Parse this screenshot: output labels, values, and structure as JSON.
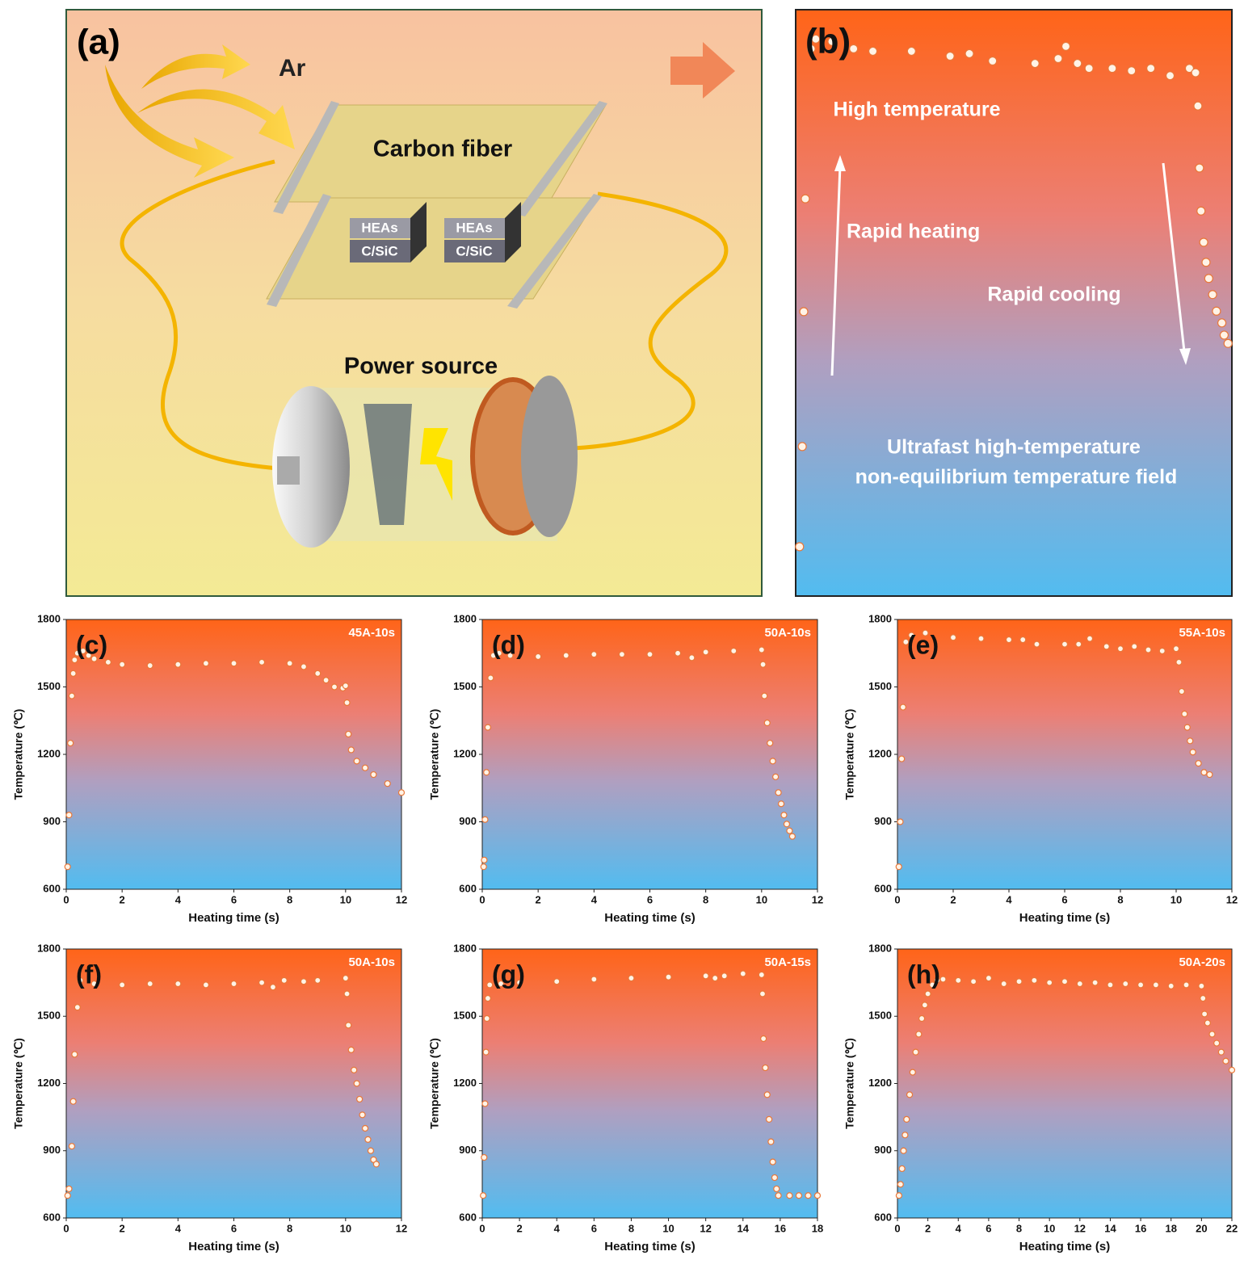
{
  "panel_a": {
    "label": "(a)",
    "gas": "Ar",
    "substrate": "Carbon fiber",
    "samples": [
      {
        "top": "HEAs",
        "bottom": "C/SiC"
      },
      {
        "top": "HEAs",
        "bottom": "C/SiC"
      }
    ],
    "power": "Power source"
  },
  "chart_data": [
    {
      "type": "scatter",
      "label": "(b)",
      "annotations": [
        "High temperature",
        "Rapid heating",
        "Rapid cooling",
        "Ultrafast high-temperature",
        "non-equilibrium temperature field"
      ],
      "color": "#e8783a",
      "xlim": [
        0,
        11.3
      ],
      "ylim": [
        600,
        1800
      ],
      "x": [
        0.1,
        0.17,
        0.21,
        0.25,
        0.4,
        0.52,
        0.94,
        1.5,
        2,
        3,
        4,
        4.5,
        5.1,
        6.2,
        6.8,
        7,
        7.3,
        7.6,
        8.2,
        8.7,
        9.2,
        9.7,
        10.2,
        10.36,
        10.42,
        10.46,
        10.5,
        10.57,
        10.63,
        10.7,
        10.8,
        10.9,
        11.04,
        11.1,
        11.2
      ],
      "values": [
        701,
        906,
        1182,
        1413,
        1720,
        1740,
        1735,
        1720,
        1715,
        1715,
        1705,
        1710,
        1695,
        1690,
        1700,
        1725,
        1690,
        1680,
        1680,
        1675,
        1680,
        1665,
        1680,
        1671,
        1603,
        1476,
        1388,
        1324,
        1283,
        1250,
        1217,
        1183,
        1159,
        1134,
        1117
      ]
    },
    {
      "type": "scatter",
      "label": "(c)",
      "annotation": "45A-10s",
      "x_label": "Heating time (s)",
      "y_label": "Temperature (℃)",
      "color": "#e8783a",
      "xlim": [
        0,
        12
      ],
      "ylim": [
        600,
        1800
      ],
      "xticks": [
        0,
        2,
        4,
        6,
        8,
        10,
        12
      ],
      "yticks": [
        600,
        900,
        1200,
        1500,
        1800
      ],
      "x": [
        0.05,
        0.1,
        0.15,
        0.2,
        0.25,
        0.3,
        0.4,
        0.6,
        0.8,
        1,
        1.5,
        2,
        3,
        4,
        5,
        6,
        7,
        8,
        8.5,
        9,
        9.3,
        9.6,
        9.9,
        10,
        10.05,
        10.1,
        10.2,
        10.4,
        10.7,
        11,
        11.5,
        12
      ],
      "values": [
        700,
        930,
        1250,
        1460,
        1560,
        1620,
        1650,
        1660,
        1640,
        1625,
        1610,
        1600,
        1595,
        1600,
        1605,
        1605,
        1610,
        1605,
        1590,
        1560,
        1530,
        1500,
        1495,
        1505,
        1430,
        1290,
        1220,
        1170,
        1140,
        1110,
        1070,
        1030
      ]
    },
    {
      "type": "scatter",
      "label": "(d)",
      "annotation": "50A-10s",
      "x_label": "Heating time (s)",
      "y_label": "Temperature (℃)",
      "color": "#e8783a",
      "xlim": [
        0,
        12
      ],
      "ylim": [
        600,
        1800
      ],
      "xticks": [
        0,
        2,
        4,
        6,
        8,
        10,
        12
      ],
      "yticks": [
        600,
        900,
        1200,
        1500,
        1800
      ],
      "x": [
        0.05,
        0.07,
        0.1,
        0.15,
        0.2,
        0.3,
        0.4,
        0.6,
        1,
        2,
        3,
        4,
        5,
        6,
        7,
        7.5,
        8,
        9,
        10,
        10.05,
        10.1,
        10.2,
        10.3,
        10.4,
        10.5,
        10.6,
        10.7,
        10.8,
        10.9,
        11,
        11.1
      ],
      "values": [
        700,
        730,
        910,
        1120,
        1320,
        1540,
        1640,
        1650,
        1640,
        1635,
        1640,
        1645,
        1645,
        1645,
        1650,
        1630,
        1655,
        1660,
        1665,
        1600,
        1460,
        1340,
        1250,
        1170,
        1100,
        1030,
        980,
        930,
        890,
        860,
        835
      ]
    },
    {
      "type": "scatter",
      "label": "(e)",
      "annotation": "55A-10s",
      "x_label": "Heating time (s)",
      "y_label": "Temperature (℃)",
      "color": "#e8783a",
      "xlim": [
        0,
        12
      ],
      "ylim": [
        600,
        1800
      ],
      "xticks": [
        0,
        2,
        4,
        6,
        8,
        10,
        12
      ],
      "yticks": [
        600,
        900,
        1200,
        1500,
        1800
      ],
      "x": [
        0.05,
        0.1,
        0.15,
        0.2,
        0.3,
        0.5,
        1,
        2,
        3,
        4,
        4.5,
        5,
        6,
        6.5,
        6.9,
        7.5,
        8,
        8.5,
        9,
        9.5,
        10,
        10.1,
        10.2,
        10.3,
        10.4,
        10.5,
        10.6,
        10.8,
        11,
        11.2
      ],
      "values": [
        700,
        900,
        1180,
        1410,
        1700,
        1730,
        1740,
        1720,
        1715,
        1710,
        1710,
        1690,
        1690,
        1690,
        1715,
        1680,
        1670,
        1680,
        1665,
        1660,
        1670,
        1610,
        1480,
        1380,
        1320,
        1260,
        1210,
        1160,
        1120,
        1110
      ]
    },
    {
      "type": "scatter",
      "label": "(f)",
      "annotation": "50A-10s",
      "x_label": "Heating time (s)",
      "y_label": "Temperature (℃)",
      "color": "#e8783a",
      "xlim": [
        0,
        12
      ],
      "ylim": [
        600,
        1800
      ],
      "xticks": [
        0,
        2,
        4,
        6,
        8,
        10,
        12
      ],
      "yticks": [
        600,
        900,
        1200,
        1500,
        1800
      ],
      "x": [
        0.05,
        0.1,
        0.2,
        0.25,
        0.3,
        0.4,
        0.5,
        1,
        2,
        3,
        4,
        5,
        6,
        7,
        7.4,
        7.8,
        8.5,
        9,
        10,
        10.05,
        10.1,
        10.2,
        10.3,
        10.4,
        10.5,
        10.6,
        10.7,
        10.8,
        10.9,
        11,
        11.1
      ],
      "values": [
        700,
        730,
        920,
        1120,
        1330,
        1540,
        1660,
        1645,
        1640,
        1645,
        1645,
        1640,
        1645,
        1650,
        1630,
        1660,
        1655,
        1660,
        1670,
        1600,
        1460,
        1350,
        1260,
        1200,
        1130,
        1060,
        1000,
        950,
        900,
        860,
        840
      ]
    },
    {
      "type": "scatter",
      "label": "(g)",
      "annotation": "50A-15s",
      "x_label": "Heating time (s)",
      "y_label": "Temperature (℃)",
      "color": "#e8783a",
      "xlim": [
        0,
        18
      ],
      "ylim": [
        600,
        1800
      ],
      "xticks": [
        0,
        2,
        4,
        6,
        8,
        10,
        12,
        14,
        16,
        18
      ],
      "yticks": [
        600,
        900,
        1200,
        1500,
        1800
      ],
      "x": [
        0.05,
        0.1,
        0.15,
        0.2,
        0.25,
        0.3,
        0.4,
        1,
        2,
        4,
        6,
        8,
        10,
        12,
        12.5,
        13,
        14,
        15,
        15.05,
        15.1,
        15.2,
        15.3,
        15.4,
        15.5,
        15.6,
        15.7,
        15.8,
        15.9,
        16.5,
        17,
        17.5,
        18
      ],
      "values": [
        700,
        870,
        1110,
        1340,
        1490,
        1580,
        1640,
        1645,
        1650,
        1655,
        1665,
        1670,
        1675,
        1680,
        1670,
        1680,
        1690,
        1685,
        1600,
        1400,
        1270,
        1150,
        1040,
        940,
        850,
        780,
        730,
        700,
        700,
        700,
        700,
        700
      ]
    },
    {
      "type": "scatter",
      "label": "(h)",
      "annotation": "50A-20s",
      "x_label": "Heating time (s)",
      "y_label": "Temperature (℃)",
      "color": "#e8783a",
      "xlim": [
        0,
        22
      ],
      "ylim": [
        600,
        1800
      ],
      "xticks": [
        0,
        2,
        4,
        6,
        8,
        10,
        12,
        14,
        16,
        18,
        20,
        22
      ],
      "yticks": [
        600,
        900,
        1200,
        1500,
        1800
      ],
      "x": [
        0.1,
        0.2,
        0.3,
        0.4,
        0.5,
        0.6,
        0.8,
        1,
        1.2,
        1.4,
        1.6,
        1.8,
        2,
        2.3,
        2.6,
        3,
        4,
        5,
        6,
        7,
        8,
        9,
        10,
        11,
        12,
        13,
        14,
        15,
        16,
        17,
        18,
        19,
        20,
        20.1,
        20.2,
        20.4,
        20.7,
        21,
        21.3,
        21.6,
        22
      ],
      "values": [
        700,
        750,
        820,
        900,
        970,
        1040,
        1150,
        1250,
        1340,
        1420,
        1490,
        1550,
        1600,
        1640,
        1660,
        1665,
        1660,
        1655,
        1670,
        1645,
        1655,
        1660,
        1650,
        1655,
        1645,
        1650,
        1640,
        1645,
        1640,
        1640,
        1635,
        1640,
        1635,
        1580,
        1510,
        1470,
        1420,
        1380,
        1340,
        1300,
        1260
      ]
    }
  ]
}
